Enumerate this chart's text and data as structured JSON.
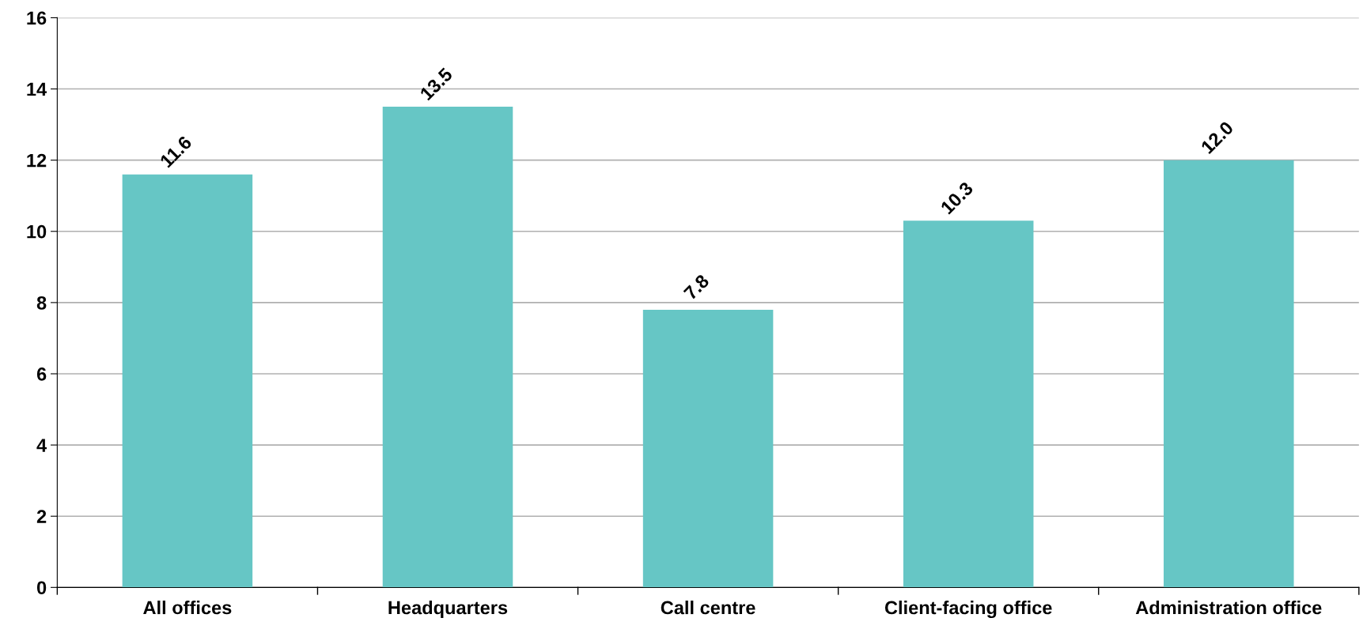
{
  "chart_data": {
    "type": "bar",
    "categories": [
      "All offices",
      "Headquarters",
      "Call centre",
      "Client-facing office",
      "Administration office"
    ],
    "values": [
      11.6,
      13.5,
      7.8,
      10.3,
      12.0
    ],
    "value_labels": [
      "11.6",
      "13.5",
      "7.8",
      "10.3",
      "12.0"
    ],
    "color": "#66c6c5",
    "ylim": [
      0,
      16
    ],
    "yticks": [
      0,
      2,
      4,
      6,
      8,
      10,
      12,
      14,
      16
    ],
    "grid": "y"
  }
}
